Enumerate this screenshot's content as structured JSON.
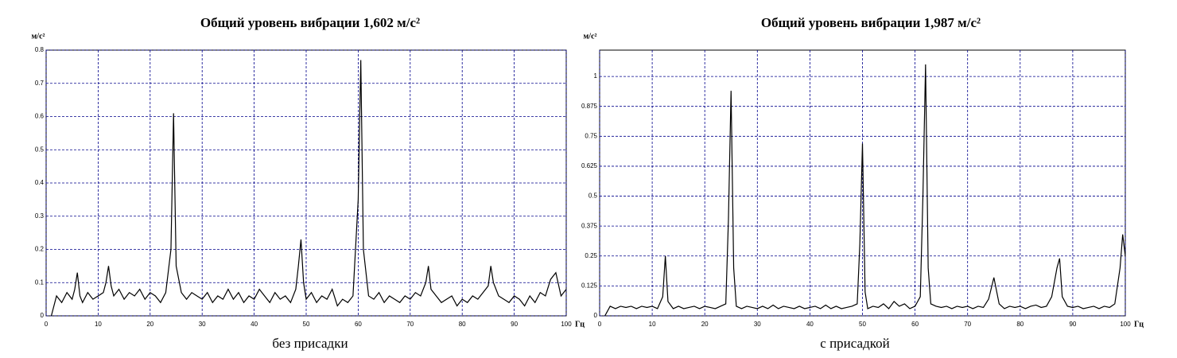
{
  "chart_data": [
    {
      "type": "line",
      "title": "Общий уровень вибрации 1,602 м/с²",
      "y_label": "м/с²",
      "x_label": "Гц",
      "caption": "без присадки",
      "color": "#000000",
      "grid": true,
      "xlim": [
        0,
        100
      ],
      "xticks": [
        0,
        10,
        20,
        30,
        40,
        50,
        60,
        70,
        80,
        90,
        100
      ],
      "ylim": [
        0,
        0.8
      ],
      "yticks": [
        0,
        0.1,
        0.2,
        0.3,
        0.4,
        0.5,
        0.6,
        0.7,
        0.8
      ],
      "x": [
        1,
        2,
        3,
        4,
        5,
        5.5,
        6,
        6.5,
        7,
        8,
        9,
        10,
        11,
        11.5,
        12,
        12.5,
        13,
        14,
        15,
        16,
        17,
        18,
        19,
        20,
        21,
        22,
        23,
        24,
        24.5,
        25,
        26,
        27,
        28,
        29,
        30,
        31,
        32,
        33,
        34,
        35,
        36,
        37,
        38,
        39,
        40,
        41,
        42,
        43,
        44,
        45,
        46,
        47,
        48,
        48.5,
        49,
        49.5,
        50,
        51,
        52,
        53,
        54,
        55,
        56,
        57,
        58,
        59,
        60,
        60.5,
        61,
        62,
        63,
        64,
        65,
        66,
        67,
        68,
        69,
        70,
        71,
        72,
        73,
        73.5,
        74,
        75,
        76,
        77,
        78,
        79,
        80,
        81,
        82,
        83,
        84,
        85,
        85.5,
        86,
        87,
        88,
        89,
        90,
        91,
        92,
        93,
        94,
        95,
        96,
        97,
        98,
        99,
        100
      ],
      "values": [
        0,
        0.06,
        0.04,
        0.07,
        0.05,
        0.08,
        0.13,
        0.06,
        0.04,
        0.07,
        0.05,
        0.06,
        0.07,
        0.1,
        0.15,
        0.09,
        0.06,
        0.08,
        0.05,
        0.07,
        0.06,
        0.08,
        0.05,
        0.07,
        0.06,
        0.04,
        0.07,
        0.2,
        0.61,
        0.15,
        0.07,
        0.05,
        0.07,
        0.06,
        0.05,
        0.07,
        0.04,
        0.06,
        0.05,
        0.08,
        0.05,
        0.07,
        0.04,
        0.06,
        0.05,
        0.08,
        0.06,
        0.04,
        0.07,
        0.05,
        0.06,
        0.04,
        0.08,
        0.15,
        0.23,
        0.1,
        0.05,
        0.07,
        0.04,
        0.06,
        0.05,
        0.08,
        0.03,
        0.05,
        0.04,
        0.06,
        0.35,
        0.77,
        0.2,
        0.06,
        0.05,
        0.07,
        0.04,
        0.06,
        0.05,
        0.04,
        0.06,
        0.05,
        0.07,
        0.06,
        0.1,
        0.15,
        0.08,
        0.06,
        0.04,
        0.05,
        0.06,
        0.03,
        0.05,
        0.04,
        0.06,
        0.05,
        0.07,
        0.09,
        0.15,
        0.1,
        0.06,
        0.05,
        0.04,
        0.06,
        0.05,
        0.03,
        0.06,
        0.04,
        0.07,
        0.06,
        0.11,
        0.13,
        0.06,
        0.08
      ]
    },
    {
      "type": "line",
      "title": "Общий уровень вибрации 1,987 м/с²",
      "y_label": "м/с²",
      "x_label": "Гц",
      "caption": "с присадкой",
      "color": "#000000",
      "grid": true,
      "xlim": [
        0,
        100
      ],
      "xticks": [
        0,
        10,
        20,
        30,
        40,
        50,
        60,
        70,
        80,
        90,
        100
      ],
      "ylim": [
        0,
        1.11
      ],
      "yticks": [
        0,
        0.125,
        0.25,
        0.375,
        0.5,
        0.625,
        0.75,
        0.875,
        1
      ],
      "x": [
        1,
        2,
        3,
        4,
        5,
        6,
        7,
        8,
        9,
        10,
        11,
        12,
        12.5,
        13,
        14,
        15,
        16,
        17,
        18,
        19,
        20,
        21,
        22,
        23,
        24,
        24.5,
        25,
        25.5,
        26,
        27,
        28,
        29,
        30,
        31,
        32,
        33,
        34,
        35,
        36,
        37,
        38,
        39,
        40,
        41,
        42,
        43,
        44,
        45,
        46,
        47,
        48,
        49,
        49.5,
        50,
        50.5,
        51,
        52,
        53,
        54,
        55,
        56,
        57,
        58,
        59,
        60,
        61,
        61.5,
        62,
        62.5,
        63,
        64,
        65,
        66,
        67,
        68,
        69,
        70,
        71,
        72,
        73,
        74,
        75,
        76,
        77,
        78,
        79,
        80,
        81,
        82,
        83,
        84,
        85,
        86,
        87,
        87.5,
        88,
        89,
        90,
        91,
        92,
        93,
        94,
        95,
        96,
        97,
        98,
        99,
        99.5,
        100
      ],
      "values": [
        0,
        0.04,
        0.03,
        0.04,
        0.035,
        0.04,
        0.03,
        0.04,
        0.035,
        0.04,
        0.03,
        0.08,
        0.25,
        0.06,
        0.03,
        0.04,
        0.03,
        0.035,
        0.04,
        0.03,
        0.04,
        0.035,
        0.03,
        0.04,
        0.05,
        0.4,
        0.94,
        0.2,
        0.04,
        0.03,
        0.04,
        0.035,
        0.03,
        0.04,
        0.03,
        0.045,
        0.03,
        0.04,
        0.035,
        0.03,
        0.04,
        0.03,
        0.035,
        0.04,
        0.03,
        0.045,
        0.03,
        0.04,
        0.03,
        0.035,
        0.04,
        0.05,
        0.3,
        0.72,
        0.1,
        0.03,
        0.04,
        0.035,
        0.05,
        0.03,
        0.06,
        0.04,
        0.05,
        0.03,
        0.04,
        0.08,
        0.5,
        1.05,
        0.2,
        0.05,
        0.04,
        0.035,
        0.04,
        0.03,
        0.04,
        0.035,
        0.04,
        0.03,
        0.04,
        0.035,
        0.07,
        0.16,
        0.05,
        0.03,
        0.04,
        0.035,
        0.04,
        0.03,
        0.04,
        0.045,
        0.035,
        0.04,
        0.08,
        0.2,
        0.24,
        0.08,
        0.04,
        0.035,
        0.04,
        0.03,
        0.035,
        0.04,
        0.03,
        0.04,
        0.035,
        0.05,
        0.2,
        0.34,
        0.25
      ]
    }
  ]
}
